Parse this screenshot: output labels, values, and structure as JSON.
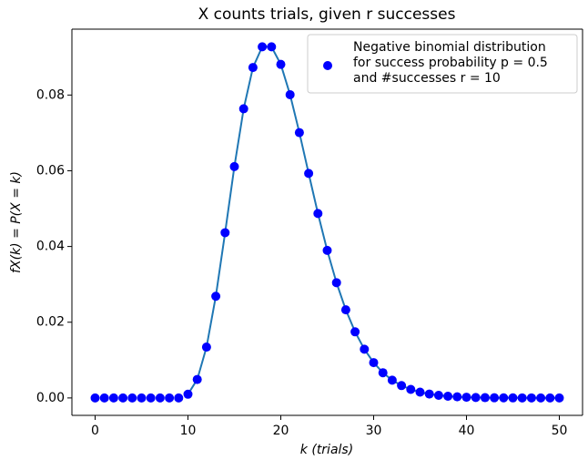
{
  "chart_data": {
    "type": "scatter",
    "title": "X counts trials, given r successes",
    "xlabel": "k (trials)",
    "ylabel": "fX(k) = P(X = k)",
    "xlim": [
      -2.5,
      52.5
    ],
    "xticks": [
      0,
      10,
      20,
      30,
      40,
      50
    ],
    "ylim": [
      -0.0046,
      0.0974
    ],
    "yticks": [
      {
        "value": 0,
        "label": "0.00"
      },
      {
        "value": 0.02,
        "label": "0.02"
      },
      {
        "value": 0.04,
        "label": "0.04"
      },
      {
        "value": 0.06,
        "label": "0.06"
      },
      {
        "value": 0.08,
        "label": "0.08"
      }
    ],
    "legend_position": "upper right",
    "series": [
      {
        "name": "Negative binomial distribution\nfor success probability p = 0.5\nand #successes r = 10",
        "type": "scatter",
        "color": "#0000ff",
        "x": [
          0,
          1,
          2,
          3,
          4,
          5,
          6,
          7,
          8,
          9,
          10,
          11,
          12,
          13,
          14,
          15,
          16,
          17,
          18,
          19,
          20,
          21,
          22,
          23,
          24,
          25,
          26,
          27,
          28,
          29,
          30,
          31,
          32,
          33,
          34,
          35,
          36,
          37,
          38,
          39,
          40,
          41,
          42,
          43,
          44,
          45,
          46,
          47,
          48,
          49,
          50
        ],
        "values": [
          0,
          0,
          0,
          0,
          0,
          0,
          0,
          0,
          0,
          0,
          0.00098,
          0.00488,
          0.01343,
          0.02686,
          0.04364,
          0.0611,
          0.07637,
          0.08728,
          0.09274,
          0.09274,
          0.0881,
          0.08009,
          0.07008,
          0.0593,
          0.04871,
          0.03897,
          0.03044,
          0.02328,
          0.01746,
          0.01287,
          0.00933,
          0.00666,
          0.00469,
          0.00327,
          0.00225,
          0.00153,
          0.00103,
          0.00069,
          0.00045,
          0.0003,
          0.00019,
          0.00012,
          8e-05,
          5e-05,
          3e-05,
          2e-05,
          1e-05,
          1e-05,
          0,
          0,
          0
        ]
      },
      {
        "type": "line",
        "color": "#1f77b4",
        "x": [
          10,
          11,
          12,
          13,
          14,
          15,
          16,
          17,
          18,
          19,
          20,
          21,
          22,
          23,
          24,
          25,
          26,
          27,
          28,
          29,
          30,
          31,
          32,
          33,
          34,
          35,
          36,
          37,
          38,
          39,
          40,
          41,
          42,
          43,
          44,
          45,
          46,
          47,
          48,
          49,
          50
        ],
        "values": [
          0.00098,
          0.00488,
          0.01343,
          0.02686,
          0.04364,
          0.0611,
          0.07637,
          0.08728,
          0.09274,
          0.09274,
          0.0881,
          0.08009,
          0.07008,
          0.0593,
          0.04871,
          0.03897,
          0.03044,
          0.02328,
          0.01746,
          0.01287,
          0.00933,
          0.00666,
          0.00469,
          0.00327,
          0.00225,
          0.00153,
          0.00103,
          0.00069,
          0.00045,
          0.0003,
          0.00019,
          0.00012,
          8e-05,
          5e-05,
          3e-05,
          2e-05,
          1e-05,
          1e-05,
          0,
          0,
          0
        ]
      }
    ]
  }
}
